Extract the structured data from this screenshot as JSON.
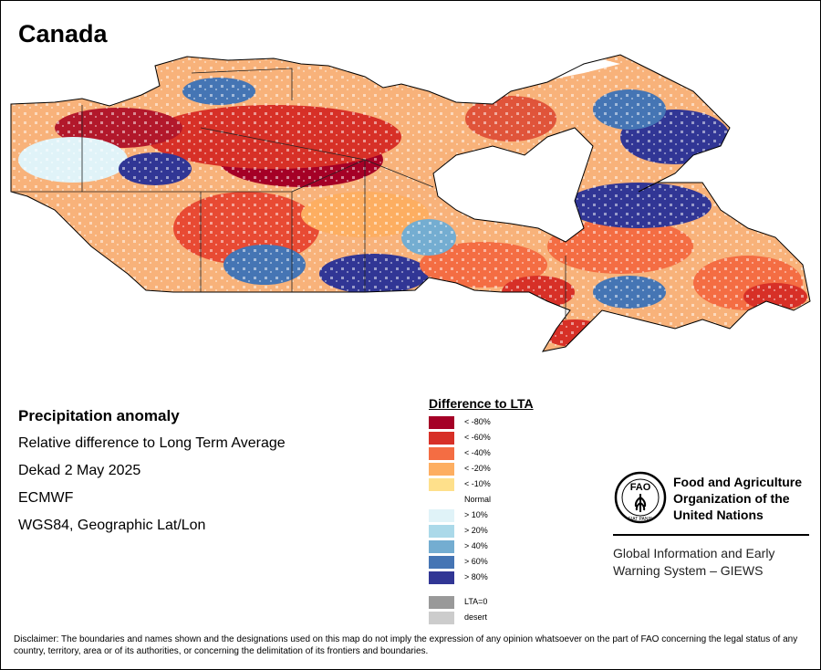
{
  "title": "Canada",
  "info": {
    "heading": "Precipitation anomaly",
    "lines": [
      "Relative difference to Long Term Average",
      "Dekad 2 May 2025",
      "ECMWF",
      "WGS84, Geographic Lat/Lon"
    ]
  },
  "legend": {
    "title": "Difference to LTA",
    "items": [
      {
        "label": "< -80%",
        "color": "#a50026"
      },
      {
        "label": "< -60%",
        "color": "#d73027"
      },
      {
        "label": "< -40%",
        "color": "#f46d43"
      },
      {
        "label": "< -20%",
        "color": "#fdae61"
      },
      {
        "label": "< -10%",
        "color": "#fee08b"
      },
      {
        "label": "Normal",
        "color": "#ffffff"
      },
      {
        "label": "> 10%",
        "color": "#e0f3f8"
      },
      {
        "label": "> 20%",
        "color": "#abd9e9"
      },
      {
        "label": "> 40%",
        "color": "#74add1"
      },
      {
        "label": "> 60%",
        "color": "#4575b4"
      },
      {
        "label": "> 80%",
        "color": "#313695"
      },
      {
        "label": "LTA=0",
        "color": "#999999"
      },
      {
        "label": "desert",
        "color": "#cccccc"
      }
    ]
  },
  "fao": {
    "name_lines": [
      "Food and Agriculture",
      "Organization of the",
      "United Nations"
    ],
    "emblem_text": "FAO",
    "emblem_motto": "FIAT PANIS",
    "giews_lines": [
      "Global Information and Early",
      "Warning System – GIEWS"
    ]
  },
  "disclaimer": "Disclaimer: The boundaries and names shown and the designations used on this map do not imply the expression of any opinion whatsoever on the part of FAO concerning the legal status of any country, territory, area or of its authorities, or concerning the delimitation of its frontiers and boundaries."
}
